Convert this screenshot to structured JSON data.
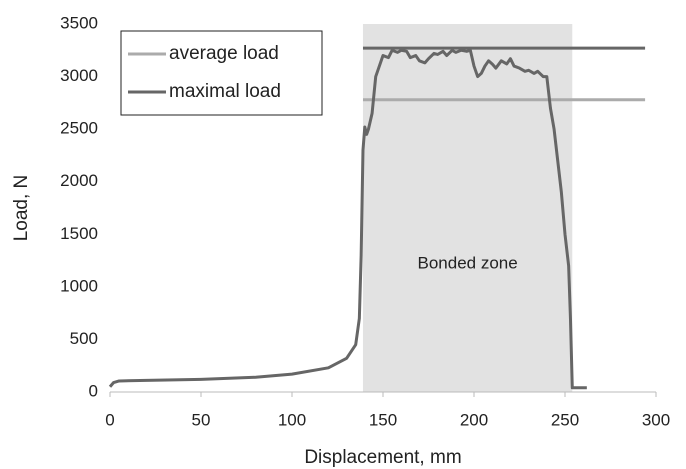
{
  "chart_data": {
    "type": "line",
    "xlabel": "Displacement, mm",
    "ylabel": "Load, N",
    "xlim": [
      0,
      300
    ],
    "ylim": [
      0,
      3500
    ],
    "xticks": [
      0,
      50,
      100,
      150,
      200,
      250,
      300
    ],
    "yticks": [
      0,
      500,
      1000,
      1500,
      2000,
      2500,
      3000,
      3500
    ],
    "grid": false,
    "legend": "upper left",
    "shaded_region": {
      "x": [
        139,
        254
      ],
      "color": "#e2e2e2",
      "label": "Bonded zone"
    },
    "series": [
      {
        "name": "average load",
        "color": "#ababab",
        "x": [
          139,
          294
        ],
        "values": [
          2780,
          2780
        ]
      },
      {
        "name": "maximal load",
        "color": "#666666",
        "x": [
          139,
          294
        ],
        "values": [
          3270,
          3270
        ]
      },
      {
        "color": "#666666",
        "x": [
          0,
          2,
          5,
          20,
          50,
          80,
          100,
          120,
          130,
          135,
          137,
          138,
          139,
          140,
          141,
          142,
          144,
          146,
          148,
          150,
          153,
          155,
          158,
          160,
          163,
          165,
          168,
          170,
          173,
          175,
          178,
          180,
          183,
          185,
          188,
          190,
          193,
          196,
          198,
          200,
          202,
          204,
          206,
          208,
          210,
          212,
          215,
          218,
          220,
          222,
          225,
          228,
          230,
          233,
          235,
          238,
          240,
          242,
          244,
          246,
          248,
          250,
          252,
          253,
          254,
          262
        ],
        "values": [
          50,
          90,
          105,
          110,
          120,
          140,
          170,
          230,
          320,
          450,
          700,
          1300,
          2300,
          2520,
          2450,
          2500,
          2650,
          3000,
          3100,
          3200,
          3180,
          3250,
          3230,
          3250,
          3240,
          3180,
          3200,
          3150,
          3130,
          3170,
          3220,
          3210,
          3240,
          3200,
          3250,
          3230,
          3250,
          3240,
          3250,
          3100,
          3000,
          3030,
          3100,
          3150,
          3120,
          3080,
          3150,
          3120,
          3170,
          3100,
          3080,
          3050,
          3060,
          3030,
          3050,
          3000,
          3000,
          2700,
          2500,
          2200,
          1900,
          1500,
          1200,
          700,
          40,
          40
        ]
      }
    ]
  }
}
